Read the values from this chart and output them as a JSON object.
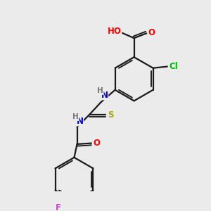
{
  "bg_color": "#ebebeb",
  "bond_color": "#1a1a1a",
  "atom_colors": {
    "O": "#ff0000",
    "N": "#0000cc",
    "S": "#aaaa00",
    "Cl": "#00bb00",
    "F": "#cc44cc",
    "H": "#777777",
    "C": "#1a1a1a"
  },
  "bond_width": 1.6,
  "font_size": 8.5
}
